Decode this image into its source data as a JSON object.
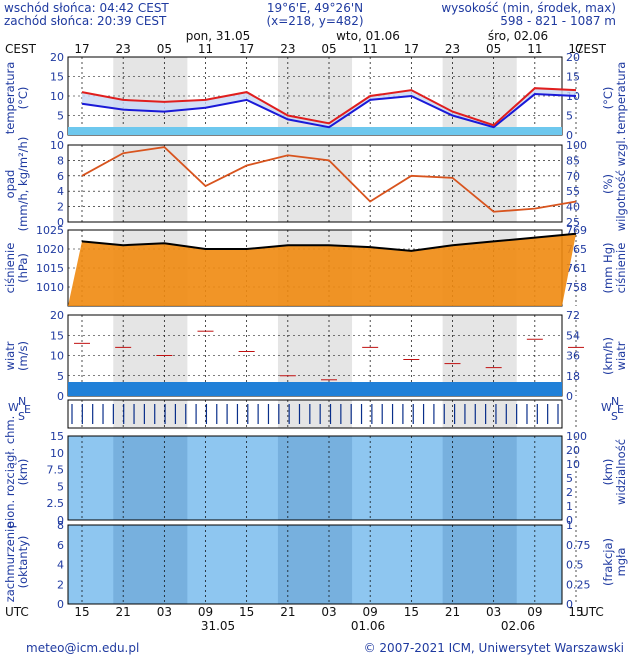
{
  "header": {
    "sunrise": "wschód słońca: 04:42 CEST",
    "sunset": "zachód słońca: 20:39 CEST",
    "coords": "19°6'E, 49°26'N",
    "grid": "(x=218, y=482)",
    "elevation_title": "wysokość (min, środek, max)",
    "elevation_values": "598 - 821 - 1087 m"
  },
  "top_axis": {
    "tz": "CEST",
    "days": [
      "pon, 31.05",
      "wto, 01.06",
      "śro, 02.06"
    ],
    "hours": [
      "17",
      "23",
      "05",
      "11",
      "17",
      "23",
      "05",
      "11",
      "17",
      "23",
      "05",
      "11",
      "17"
    ]
  },
  "bottom_axis": {
    "tz": "UTC",
    "hours": [
      "15",
      "21",
      "03",
      "09",
      "15",
      "21",
      "03",
      "09",
      "15",
      "21",
      "03",
      "09",
      "15"
    ],
    "dates": [
      "31.05",
      "01.06",
      "02.06"
    ]
  },
  "footer": {
    "email": "meteo@icm.edu.pl",
    "copyright": "© 2007-2021 ICM, Uniwersytet Warszawski"
  },
  "panels": {
    "temperature": {
      "left_label": "temperatura",
      "left_unit": "(°C)",
      "right_label": "temperatura",
      "right_unit": "(°C)"
    },
    "precip": {
      "left_label": "opad",
      "left_unit": "(mm/h, kg/m²/h)",
      "right_label": "wilgotność wzgl.",
      "right_unit": "(%)"
    },
    "pressure": {
      "left_label": "ciśnienie",
      "left_unit": "(hPa)",
      "right_label": "ciśnienie",
      "right_unit": "(mm Hg)"
    },
    "wind": {
      "left_label": "wiatr",
      "left_unit": "(m/s)",
      "right_label": "wiatr",
      "right_unit": "(km/h)"
    },
    "visibility": {
      "left_label": "pion. rozciągł. chm.",
      "left_unit": "(km)",
      "right_label": "widzialność",
      "right_unit": "(km)"
    },
    "cloud": {
      "left_label": "zachmurzenie",
      "left_unit": "(oktanty)",
      "right_label": "mgła",
      "right_unit": "(frakcja)"
    }
  },
  "wind_dir_labels": {
    "n": "N",
    "w": "W",
    "s": "S",
    "e": "E"
  },
  "colors": {
    "text": "#1f3aa0",
    "temp_line": "#e01e1e",
    "dew_line": "#1a1ad8",
    "humidity_line": "#d8541e",
    "precip_bar": "#1a9a1a",
    "pressure_fill": "#f08a10",
    "pressure_line": "#000000",
    "wind_bars": "#0a2f8a",
    "panel_blue": "#8ec6f0",
    "cloud_dark": "#444444",
    "fog_bar": "#f0b020"
  },
  "chart_data": [
    {
      "type": "line",
      "panel": "temperature",
      "x": [
        "17",
        "23",
        "05",
        "11",
        "17",
        "23",
        "05",
        "11",
        "17",
        "23",
        "05",
        "11",
        "17"
      ],
      "ylim": [
        0,
        20
      ],
      "yticks_left": [
        0,
        5,
        10,
        15,
        20
      ],
      "series": [
        {
          "values": [
            11,
            9,
            8.5,
            9,
            11,
            5,
            3,
            10,
            11.5,
            6,
            2.5,
            12,
            11.5
          ]
        },
        {
          "values": [
            8,
            6.5,
            6,
            7,
            9,
            4,
            2,
            9,
            10,
            5,
            2,
            10.5,
            10
          ]
        }
      ]
    },
    {
      "type": "bar",
      "panel": "precip",
      "ylim": [
        0,
        10
      ],
      "yticks_left": [
        0,
        2,
        4,
        6,
        8,
        10
      ],
      "yticks_right": [
        25,
        40,
        55,
        70,
        85,
        100
      ],
      "humidity": [
        70,
        92,
        98,
        60,
        80,
        90,
        85,
        45,
        70,
        68,
        35,
        38,
        45
      ]
    },
    {
      "type": "area",
      "panel": "pressure",
      "ylim": [
        1005,
        1025
      ],
      "yticks_left": [
        1010,
        1015,
        1020,
        1025
      ],
      "yticks_right": [
        758,
        761,
        765,
        769
      ],
      "values": [
        1022,
        1021,
        1021.5,
        1020,
        1020,
        1021,
        1021,
        1020.5,
        1019.5,
        1021,
        1022,
        1023,
        1024
      ]
    },
    {
      "type": "area",
      "panel": "wind",
      "ylim": [
        0,
        20
      ],
      "yticks_left": [
        0,
        5,
        10,
        15,
        20
      ],
      "yticks_right": [
        0,
        18,
        36,
        54,
        72
      ],
      "gusts": [
        13,
        12,
        10,
        16,
        11,
        5,
        4,
        12,
        9,
        8,
        7,
        14,
        12
      ]
    },
    {
      "type": "scatter",
      "panel": "visibility",
      "ylim": [
        0,
        15
      ],
      "yticks_left": [
        0,
        2.5,
        5,
        7.5,
        10,
        15
      ],
      "yticks_right": [
        0,
        1,
        2,
        5,
        10,
        20,
        100
      ]
    },
    {
      "type": "area",
      "panel": "cloud",
      "ylim": [
        0,
        8
      ],
      "yticks_left": [
        0,
        2,
        4,
        6,
        8
      ],
      "yticks_right": [
        0,
        0.25,
        0.5,
        0.75,
        1
      ]
    }
  ]
}
